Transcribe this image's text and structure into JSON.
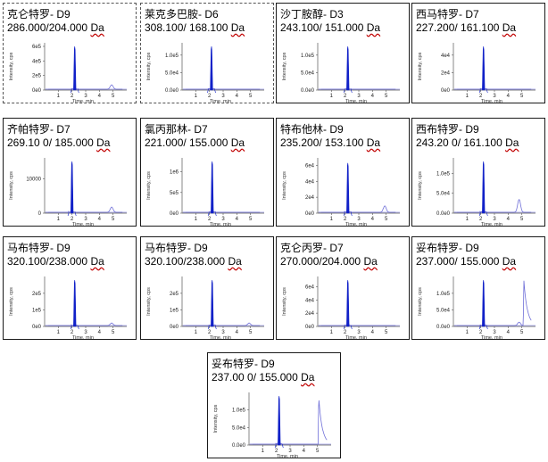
{
  "colors": {
    "peak": "#1020c8",
    "baseline": "#6f6fd8",
    "axis": "#555555",
    "ref_line": "#9a9ae6"
  },
  "chart_data": [
    {
      "type": "line",
      "name": "克仑特罗- D9",
      "transition": "286.000/204.000",
      "unit": "Da",
      "ylabel": "Intensity, cps",
      "xlabel": "Time, min",
      "xticks": [
        1,
        2,
        3,
        4,
        5
      ],
      "yticks": [
        "0e0",
        "2e5",
        "4e5",
        "6e5"
      ],
      "ylim": [
        0,
        600000.0
      ],
      "xlim": [
        0,
        6
      ],
      "peak_rt": 2.2,
      "peak_height": 600000.0,
      "bumps": [
        {
          "x": 4.9,
          "y": 60000.0
        }
      ]
    },
    {
      "type": "line",
      "name": "莱克多巴胺- D6",
      "transition": "308.100/ 168.100",
      "unit": "Da",
      "ylabel": "Intensity, cps",
      "xlabel": "Time, min",
      "xticks": [
        1,
        2,
        3,
        4,
        5
      ],
      "yticks": [
        "0.0e0",
        "5.0e4",
        "1.0e5"
      ],
      "ylim": [
        0,
        125000.0
      ],
      "xlim": [
        0,
        6
      ],
      "peak_rt": 2.15,
      "peak_height": 125000.0,
      "bumps": []
    },
    {
      "type": "line",
      "name": "沙丁胺醇- D3",
      "transition": "243.100/ 151.000",
      "unit": "Da",
      "ylabel": "Intensity, cps",
      "xlabel": "Time, min",
      "xticks": [
        1,
        2,
        3,
        4,
        5
      ],
      "yticks": [
        "0.0e0",
        "5.0e4",
        "1.0e5"
      ],
      "ylim": [
        0,
        125000.0
      ],
      "xlim": [
        0,
        6
      ],
      "peak_rt": 2.2,
      "peak_height": 125000.0,
      "bumps": []
    },
    {
      "type": "line",
      "name": "西马特罗- D7",
      "transition": "227.200/ 161.100",
      "unit": "Da",
      "ylabel": "Intensity, cps",
      "xlabel": "Time, min",
      "xticks": [
        1,
        2,
        3,
        4,
        5
      ],
      "yticks": [
        "0e0",
        "2e4",
        "4e4"
      ],
      "ylim": [
        0,
        50000.0
      ],
      "xlim": [
        0,
        6
      ],
      "peak_rt": 2.2,
      "peak_height": 50000.0,
      "bumps": []
    },
    {
      "type": "line",
      "name": "齐帕特罗- D7",
      "transition": "269.10 0/ 185.000",
      "unit": "Da",
      "ylabel": "Intensity, cps",
      "xlabel": "Time, min",
      "xticks": [
        1,
        2,
        3,
        4,
        5
      ],
      "yticks": [
        "0",
        "10000"
      ],
      "ylim": [
        0,
        15000.0
      ],
      "xlim": [
        0,
        6
      ],
      "peak_rt": 2.0,
      "peak_height": 15000.0,
      "bumps": [
        {
          "x": 4.9,
          "y": 1500
        }
      ]
    },
    {
      "type": "line",
      "name": "氯丙那林- D7",
      "transition": "221.000/ 155.000",
      "unit": "Da",
      "ylabel": "Intensity, cps",
      "xlabel": "Time, min",
      "xticks": [
        1,
        2,
        3,
        4,
        5
      ],
      "yticks": [
        "0e0",
        "5e5",
        "1e6"
      ],
      "ylim": [
        0,
        1250000.0
      ],
      "xlim": [
        0,
        6
      ],
      "peak_rt": 2.2,
      "peak_height": 1250000.0,
      "bumps": []
    },
    {
      "type": "line",
      "name": "特布他林- D9",
      "transition": "235.200/ 153.100",
      "unit": "Da",
      "ylabel": "Intensity, cps",
      "xlabel": "Time, min",
      "xticks": [
        1,
        2,
        3,
        4,
        5
      ],
      "yticks": [
        "0e0",
        "2e4",
        "4e4",
        "6e4"
      ],
      "ylim": [
        0,
        65000.0
      ],
      "xlim": [
        0,
        6
      ],
      "peak_rt": 2.2,
      "peak_height": 63000.0,
      "bumps": [
        {
          "x": 4.9,
          "y": 8000.0
        }
      ]
    },
    {
      "type": "line",
      "name": "西布特罗- D9",
      "transition": "243.20 0/ 161.100",
      "unit": "Da",
      "ylabel": "Intensity, cps",
      "xlabel": "Time, min",
      "xticks": [
        1,
        2,
        3,
        4,
        5
      ],
      "yticks": [
        "0.0e0",
        "5.0e4",
        "1.0e5"
      ],
      "ylim": [
        0,
        130000.0
      ],
      "xlim": [
        0,
        6
      ],
      "peak_rt": 2.2,
      "peak_height": 130000.0,
      "bumps": [
        {
          "x": 4.8,
          "y": 32000.0
        }
      ]
    },
    {
      "type": "line",
      "name": "马布特罗- D9",
      "transition": "320.100/238.000",
      "unit": "Da",
      "ylabel": "Intensity, cps",
      "xlabel": "Time, min",
      "xticks": [
        1,
        2,
        3,
        4,
        5
      ],
      "yticks": [
        "0e0",
        "1e5",
        "2e5"
      ],
      "ylim": [
        0,
        280000.0
      ],
      "xlim": [
        0,
        6
      ],
      "peak_rt": 2.2,
      "peak_height": 280000.0,
      "bumps": [
        {
          "x": 4.9,
          "y": 15000.0
        }
      ]
    },
    {
      "type": "line",
      "name": "马布特罗- D9",
      "transition": "320.100/238.000",
      "unit": "Da",
      "ylabel": "Intensity, cps",
      "xlabel": "Time, min",
      "xticks": [
        1,
        2,
        3,
        4,
        5
      ],
      "yticks": [
        "0e0",
        "1e5",
        "2e5"
      ],
      "ylim": [
        0,
        280000.0
      ],
      "xlim": [
        0,
        6
      ],
      "peak_rt": 2.2,
      "peak_height": 280000.0,
      "bumps": [
        {
          "x": 4.9,
          "y": 15000.0
        }
      ]
    },
    {
      "type": "line",
      "name": "克仑丙罗- D7",
      "transition": "270.000/204.000",
      "unit": "Da",
      "ylabel": "Intensity, cps",
      "xlabel": "Time, min",
      "xticks": [
        1,
        2,
        3,
        4,
        5
      ],
      "yticks": [
        "0e0",
        "2e4",
        "4e4",
        "6e4"
      ],
      "ylim": [
        0,
        70000.0
      ],
      "xlim": [
        0,
        6
      ],
      "peak_rt": 2.2,
      "peak_height": 70000.0,
      "bumps": []
    },
    {
      "type": "line",
      "name": "妥布特罗- D9",
      "transition": "237.000/ 155.000",
      "unit": "Da",
      "ylabel": "Intensity, cps",
      "xlabel": "Time, min",
      "xticks": [
        1,
        2,
        3,
        4,
        5
      ],
      "yticks": [
        "0.0e0",
        "5.0e4",
        "1.0e5"
      ],
      "ylim": [
        0,
        140000.0
      ],
      "xlim": [
        0,
        6
      ],
      "peak_rt": 2.2,
      "peak_height": 140000.0,
      "bumps": [
        {
          "x": 4.8,
          "y": 10000.0
        }
      ],
      "late_peak": {
        "x": 5.15,
        "y": 135000.0
      }
    },
    {
      "type": "line",
      "name": "妥布特罗- D9",
      "transition": "237.00 0/ 155.000",
      "unit": "Da",
      "ylabel": "Intensity, cps",
      "xlabel": "Time, min",
      "xticks": [
        1,
        2,
        3,
        4,
        5
      ],
      "yticks": [
        "0.0e0",
        "5.0e4",
        "1.0e5"
      ],
      "ylim": [
        0,
        140000.0
      ],
      "xlim": [
        0,
        6
      ],
      "peak_rt": 2.2,
      "peak_height": 140000.0,
      "bumps": [],
      "late_peak": {
        "x": 5.1,
        "y": 130000.0
      }
    }
  ]
}
